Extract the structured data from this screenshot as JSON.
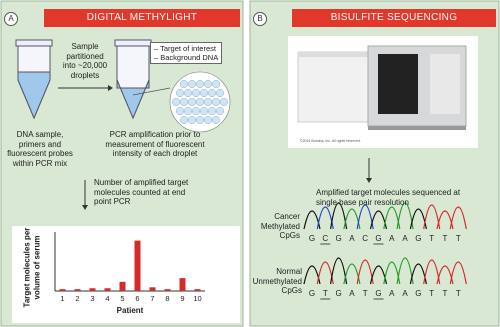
{
  "panel_a": {
    "badge": "A",
    "title": "DIGITAL METHYLIGHT",
    "partition_text": "Sample partitioned into ~20,000 droplets",
    "legend": [
      "– Target of interest",
      "– Background DNA"
    ],
    "tube1_caption": "DNA sample, primers and fluorescent probes within PCR mix",
    "tube2_caption": "PCR amplification prior to measurement of fluorescent intensity of each droplet",
    "count_text": "Number of amplified target molecules counted at end point PCR"
  },
  "chart_data": {
    "type": "bar",
    "y_label": "Target molecules per volume of serum",
    "x_label": "Patient",
    "categories": [
      "1",
      "2",
      "3",
      "4",
      "5",
      "6",
      "7",
      "8",
      "9",
      "10"
    ],
    "values": [
      2,
      2,
      3,
      3,
      10,
      55,
      4,
      2,
      14,
      2
    ],
    "color": "#d42a2a",
    "ylim": [
      0,
      60
    ]
  },
  "panel_b": {
    "badge": "B",
    "title": "BISULFITE SEQUENCING",
    "copyright": "©2014 Illumina, Inc. All rights reserved.",
    "sequenced_text": "Amplified target molecules sequenced at single base pair resolution",
    "cancer_label": "Cancer Methylated CpGs",
    "cancer_sequence": [
      "G",
      "C",
      "G",
      "A",
      "C",
      "G",
      "A",
      "A",
      "G",
      "T",
      "T",
      "T"
    ],
    "normal_label": "Normal Unmethylated CpGs",
    "normal_sequence": [
      "G",
      "T",
      "G",
      "A",
      "T",
      "G",
      "A",
      "A",
      "G",
      "T",
      "T",
      "T"
    ]
  }
}
